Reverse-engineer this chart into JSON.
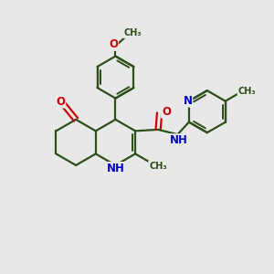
{
  "bg_color": "#e8e8e8",
  "bond_color": "#2d5016",
  "N_color": "#0000cc",
  "O_color": "#cc0000",
  "line_width": 1.6,
  "font_size": 8.5,
  "figsize": [
    3.0,
    3.0
  ],
  "dpi": 100,
  "xlim": [
    0,
    10
  ],
  "ylim": [
    0,
    10
  ]
}
